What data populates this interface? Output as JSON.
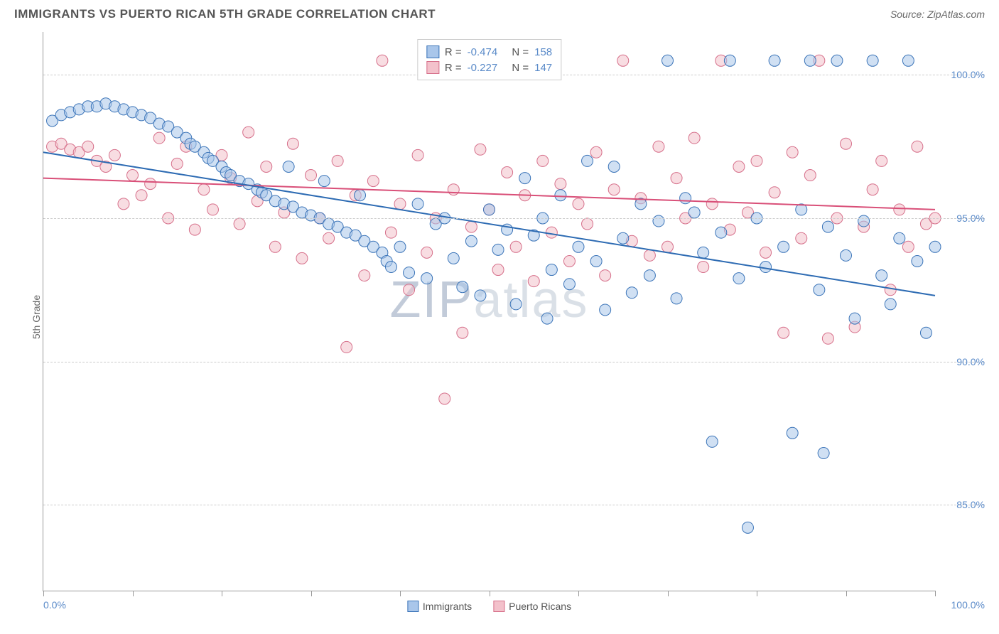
{
  "header": {
    "title": "IMMIGRANTS VS PUERTO RICAN 5TH GRADE CORRELATION CHART",
    "source_label": "Source: ",
    "source_name": "ZipAtlas.com"
  },
  "watermark": {
    "zip": "ZIP",
    "atlas": "atlas"
  },
  "chart": {
    "type": "scatter",
    "ylabel": "5th Grade",
    "xlim": [
      0,
      100
    ],
    "ylim": [
      82,
      101.5
    ],
    "ytick_values": [
      85.0,
      90.0,
      95.0,
      100.0
    ],
    "ytick_labels": [
      "85.0%",
      "90.0%",
      "95.0%",
      "100.0%"
    ],
    "xtick_values": [
      0,
      10,
      20,
      30,
      40,
      50,
      60,
      70,
      80,
      90,
      100
    ],
    "xaxis_labels": {
      "left": "0.0%",
      "right": "100.0%"
    },
    "background_color": "#ffffff",
    "grid_color": "#cccccc",
    "axis_color": "#999999",
    "tick_label_color": "#5b8bc9",
    "marker_radius": 8,
    "marker_opacity": 0.55,
    "line_width": 2,
    "series": [
      {
        "name": "Immigrants",
        "fill_color": "#a9c6ea",
        "stroke_color": "#3b74b8",
        "line_color": "#2d6bb3",
        "stats": {
          "R": "-0.474",
          "N": "158"
        },
        "trend": {
          "x1": 0,
          "y1": 97.3,
          "x2": 100,
          "y2": 92.3
        },
        "points": [
          [
            1,
            98.4
          ],
          [
            2,
            98.6
          ],
          [
            3,
            98.7
          ],
          [
            4,
            98.8
          ],
          [
            5,
            98.9
          ],
          [
            6,
            98.9
          ],
          [
            7,
            99.0
          ],
          [
            8,
            98.9
          ],
          [
            9,
            98.8
          ],
          [
            10,
            98.7
          ],
          [
            11,
            98.6
          ],
          [
            12,
            98.5
          ],
          [
            13,
            98.3
          ],
          [
            14,
            98.2
          ],
          [
            15,
            98.0
          ],
          [
            16,
            97.8
          ],
          [
            16.5,
            97.6
          ],
          [
            17,
            97.5
          ],
          [
            18,
            97.3
          ],
          [
            18.5,
            97.1
          ],
          [
            19,
            97.0
          ],
          [
            20,
            96.8
          ],
          [
            20.5,
            96.6
          ],
          [
            21,
            96.5
          ],
          [
            22,
            96.3
          ],
          [
            23,
            96.2
          ],
          [
            24,
            96.0
          ],
          [
            24.5,
            95.9
          ],
          [
            25,
            95.8
          ],
          [
            26,
            95.6
          ],
          [
            27,
            95.5
          ],
          [
            27.5,
            96.8
          ],
          [
            28,
            95.4
          ],
          [
            29,
            95.2
          ],
          [
            30,
            95.1
          ],
          [
            31,
            95.0
          ],
          [
            31.5,
            96.3
          ],
          [
            32,
            94.8
          ],
          [
            33,
            94.7
          ],
          [
            34,
            94.5
          ],
          [
            35,
            94.4
          ],
          [
            35.5,
            95.8
          ],
          [
            36,
            94.2
          ],
          [
            37,
            94.0
          ],
          [
            38,
            93.8
          ],
          [
            38.5,
            93.5
          ],
          [
            39,
            93.3
          ],
          [
            40,
            94.0
          ],
          [
            41,
            93.1
          ],
          [
            42,
            95.5
          ],
          [
            43,
            92.9
          ],
          [
            44,
            94.8
          ],
          [
            45,
            95.0
          ],
          [
            46,
            93.6
          ],
          [
            47,
            92.6
          ],
          [
            48,
            94.2
          ],
          [
            49,
            92.3
          ],
          [
            50,
            95.3
          ],
          [
            51,
            93.9
          ],
          [
            52,
            94.6
          ],
          [
            53,
            92.0
          ],
          [
            54,
            96.4
          ],
          [
            55,
            94.4
          ],
          [
            56,
            95.0
          ],
          [
            56.5,
            91.5
          ],
          [
            57,
            93.2
          ],
          [
            58,
            95.8
          ],
          [
            59,
            92.7
          ],
          [
            60,
            94.0
          ],
          [
            61,
            97.0
          ],
          [
            62,
            93.5
          ],
          [
            63,
            91.8
          ],
          [
            64,
            96.8
          ],
          [
            65,
            94.3
          ],
          [
            66,
            92.4
          ],
          [
            67,
            95.5
          ],
          [
            68,
            93.0
          ],
          [
            69,
            94.9
          ],
          [
            70,
            100.5
          ],
          [
            71,
            92.2
          ],
          [
            72,
            95.7
          ],
          [
            73,
            95.2
          ],
          [
            74,
            93.8
          ],
          [
            75,
            87.2
          ],
          [
            76,
            94.5
          ],
          [
            77,
            100.5
          ],
          [
            78,
            92.9
          ],
          [
            79,
            84.2
          ],
          [
            80,
            95.0
          ],
          [
            81,
            93.3
          ],
          [
            82,
            100.5
          ],
          [
            83,
            94.0
          ],
          [
            84,
            87.5
          ],
          [
            85,
            95.3
          ],
          [
            86,
            100.5
          ],
          [
            87,
            92.5
          ],
          [
            87.5,
            86.8
          ],
          [
            88,
            94.7
          ],
          [
            89,
            100.5
          ],
          [
            90,
            93.7
          ],
          [
            91,
            91.5
          ],
          [
            92,
            94.9
          ],
          [
            93,
            100.5
          ],
          [
            94,
            93.0
          ],
          [
            95,
            92.0
          ],
          [
            96,
            94.3
          ],
          [
            97,
            100.5
          ],
          [
            98,
            93.5
          ],
          [
            99,
            91.0
          ],
          [
            100,
            94.0
          ]
        ]
      },
      {
        "name": "Puerto Ricans",
        "fill_color": "#f3c1cb",
        "stroke_color": "#d66f8a",
        "line_color": "#d94f78",
        "stats": {
          "R": "-0.227",
          "N": "147"
        },
        "trend": {
          "x1": 0,
          "y1": 96.4,
          "x2": 100,
          "y2": 95.3
        },
        "points": [
          [
            1,
            97.5
          ],
          [
            2,
            97.6
          ],
          [
            3,
            97.4
          ],
          [
            4,
            97.3
          ],
          [
            5,
            97.5
          ],
          [
            6,
            97.0
          ],
          [
            7,
            96.8
          ],
          [
            8,
            97.2
          ],
          [
            9,
            95.5
          ],
          [
            10,
            96.5
          ],
          [
            11,
            95.8
          ],
          [
            12,
            96.2
          ],
          [
            13,
            97.8
          ],
          [
            14,
            95.0
          ],
          [
            15,
            96.9
          ],
          [
            16,
            97.5
          ],
          [
            17,
            94.6
          ],
          [
            18,
            96.0
          ],
          [
            19,
            95.3
          ],
          [
            20,
            97.2
          ],
          [
            21,
            96.4
          ],
          [
            22,
            94.8
          ],
          [
            23,
            98.0
          ],
          [
            24,
            95.6
          ],
          [
            25,
            96.8
          ],
          [
            26,
            94.0
          ],
          [
            27,
            95.2
          ],
          [
            28,
            97.6
          ],
          [
            29,
            93.6
          ],
          [
            30,
            96.5
          ],
          [
            31,
            95.0
          ],
          [
            32,
            94.3
          ],
          [
            33,
            97.0
          ],
          [
            34,
            90.5
          ],
          [
            35,
            95.8
          ],
          [
            36,
            93.0
          ],
          [
            37,
            96.3
          ],
          [
            38,
            100.5
          ],
          [
            39,
            94.5
          ],
          [
            40,
            95.5
          ],
          [
            41,
            92.5
          ],
          [
            42,
            97.2
          ],
          [
            43,
            93.8
          ],
          [
            44,
            95.0
          ],
          [
            45,
            88.7
          ],
          [
            46,
            96.0
          ],
          [
            47,
            91.0
          ],
          [
            48,
            94.7
          ],
          [
            49,
            97.4
          ],
          [
            50,
            95.3
          ],
          [
            51,
            93.2
          ],
          [
            52,
            96.6
          ],
          [
            53,
            94.0
          ],
          [
            54,
            95.8
          ],
          [
            55,
            92.8
          ],
          [
            56,
            97.0
          ],
          [
            57,
            94.5
          ],
          [
            58,
            96.2
          ],
          [
            59,
            93.5
          ],
          [
            60,
            95.5
          ],
          [
            61,
            94.8
          ],
          [
            62,
            97.3
          ],
          [
            63,
            93.0
          ],
          [
            64,
            96.0
          ],
          [
            65,
            100.5
          ],
          [
            66,
            94.2
          ],
          [
            67,
            95.7
          ],
          [
            68,
            93.7
          ],
          [
            69,
            97.5
          ],
          [
            70,
            94.0
          ],
          [
            71,
            96.4
          ],
          [
            72,
            95.0
          ],
          [
            73,
            97.8
          ],
          [
            74,
            93.3
          ],
          [
            75,
            95.5
          ],
          [
            76,
            100.5
          ],
          [
            77,
            94.6
          ],
          [
            78,
            96.8
          ],
          [
            79,
            95.2
          ],
          [
            80,
            97.0
          ],
          [
            81,
            93.8
          ],
          [
            82,
            95.9
          ],
          [
            83,
            91.0
          ],
          [
            84,
            97.3
          ],
          [
            85,
            94.3
          ],
          [
            86,
            96.5
          ],
          [
            87,
            100.5
          ],
          [
            88,
            90.8
          ],
          [
            89,
            95.0
          ],
          [
            90,
            97.6
          ],
          [
            91,
            91.2
          ],
          [
            92,
            94.7
          ],
          [
            93,
            96.0
          ],
          [
            94,
            97.0
          ],
          [
            95,
            92.5
          ],
          [
            96,
            95.3
          ],
          [
            97,
            94.0
          ],
          [
            98,
            97.5
          ],
          [
            99,
            94.8
          ],
          [
            100,
            95.0
          ]
        ]
      }
    ],
    "legend_labels": {
      "R": "R =",
      "N": "N ="
    }
  }
}
